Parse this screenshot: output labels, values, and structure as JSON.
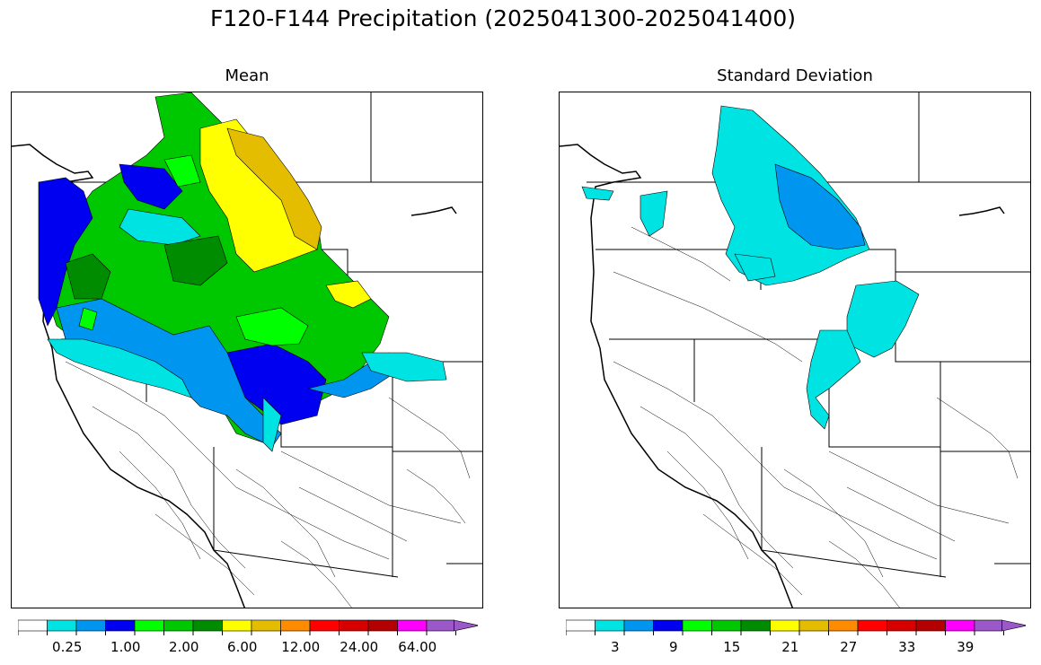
{
  "title": "F120-F144 Precipitation (2025041300-2025041400)",
  "panels": [
    {
      "title": "Mean"
    },
    {
      "title": "Standard Deviation"
    }
  ],
  "colorbars": {
    "mean": {
      "colors": [
        "#ffffff",
        "#00e3e3",
        "#0096f0",
        "#0000f0",
        "#00ff00",
        "#00c800",
        "#008c00",
        "#ffff00",
        "#e5bd00",
        "#ff8c00",
        "#ff0000",
        "#d70000",
        "#b40000",
        "#ff00ff",
        "#9a58c8"
      ],
      "tick_labels": [
        "0.25",
        "1.00",
        "2.00",
        "6.00",
        "12.00",
        "24.00",
        "64.00"
      ]
    },
    "sd": {
      "colors": [
        "#ffffff",
        "#00e3e3",
        "#0096f0",
        "#0000f0",
        "#00ff00",
        "#00c800",
        "#008c00",
        "#ffff00",
        "#e5bd00",
        "#ff8c00",
        "#ff0000",
        "#d70000",
        "#b40000",
        "#ff00ff",
        "#9a58c8"
      ],
      "tick_labels": [
        "3",
        "9",
        "15",
        "21",
        "27",
        "33",
        "39"
      ]
    }
  }
}
